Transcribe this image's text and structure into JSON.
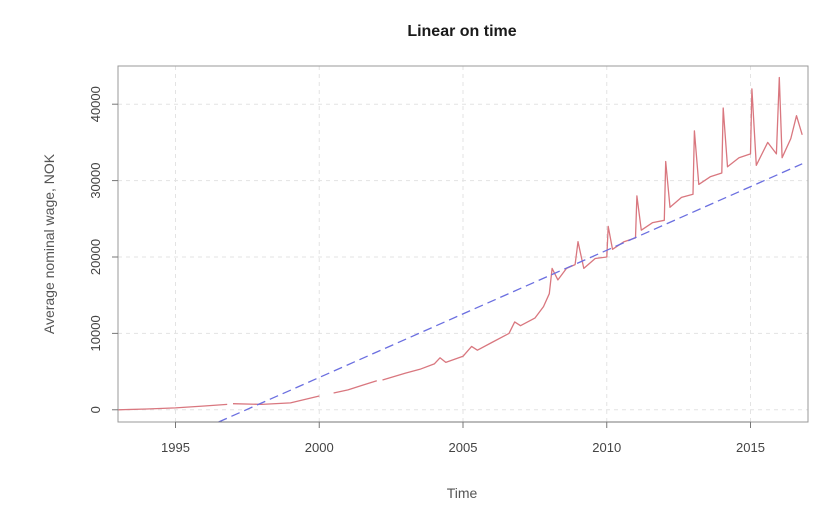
{
  "chart_data": {
    "type": "line",
    "title": "Linear on time",
    "xlabel": "Time",
    "ylabel": "Average nominal wage, NOK",
    "xlim": [
      1993,
      2017
    ],
    "ylim": [
      -1600,
      45000
    ],
    "x_ticks": [
      1995,
      2000,
      2005,
      2010,
      2015
    ],
    "x_tick_labels": [
      "1995",
      "2000",
      "2005",
      "2010",
      "2015"
    ],
    "y_ticks": [
      0,
      10000,
      20000,
      30000,
      40000
    ],
    "y_tick_labels": [
      "0",
      "10000",
      "20000",
      "30000",
      "40000"
    ],
    "grid": true,
    "series": [
      {
        "color": "#d9777f",
        "style": "solid",
        "segments": [
          [
            [
              1993.0,
              0
            ],
            [
              1994.0,
              100
            ],
            [
              1995.0,
              250
            ],
            [
              1996.0,
              500
            ],
            [
              1996.8,
              700
            ]
          ],
          [
            [
              1997.0,
              800
            ],
            [
              1998.0,
              700
            ],
            [
              1999.0,
              900
            ],
            [
              2000.0,
              1800
            ]
          ],
          [
            [
              2000.5,
              2200
            ],
            [
              2001.0,
              2600
            ],
            [
              2001.5,
              3200
            ],
            [
              2002.0,
              3800
            ]
          ],
          [
            [
              2002.2,
              3900
            ],
            [
              2003.0,
              4800
            ],
            [
              2003.5,
              5300
            ],
            [
              2004.0,
              6000
            ],
            [
              2004.2,
              6800
            ],
            [
              2004.4,
              6200
            ],
            [
              2005.0,
              7000
            ],
            [
              2005.3,
              8300
            ],
            [
              2005.5,
              7800
            ],
            [
              2006.0,
              8800
            ],
            [
              2006.6,
              10000
            ],
            [
              2006.8,
              11500
            ],
            [
              2007.0,
              11000
            ],
            [
              2007.5,
              12000
            ],
            [
              2007.8,
              13500
            ],
            [
              2008.0,
              15200
            ],
            [
              2008.1,
              18500
            ],
            [
              2008.3,
              17000
            ],
            [
              2008.6,
              18500
            ],
            [
              2008.9,
              19000
            ],
            [
              2009.0,
              22000
            ],
            [
              2009.2,
              18500
            ],
            [
              2009.6,
              19800
            ],
            [
              2010.0,
              20000
            ],
            [
              2010.05,
              24000
            ],
            [
              2010.2,
              21000
            ],
            [
              2010.6,
              22000
            ],
            [
              2011.0,
              22500
            ],
            [
              2011.05,
              28000
            ],
            [
              2011.2,
              23500
            ],
            [
              2011.6,
              24500
            ],
            [
              2012.0,
              24800
            ],
            [
              2012.05,
              32500
            ],
            [
              2012.2,
              26500
            ],
            [
              2012.6,
              27800
            ],
            [
              2013.0,
              28200
            ],
            [
              2013.05,
              36500
            ],
            [
              2013.2,
              29500
            ],
            [
              2013.6,
              30500
            ],
            [
              2014.0,
              31000
            ],
            [
              2014.05,
              39500
            ],
            [
              2014.2,
              31800
            ],
            [
              2014.6,
              33000
            ],
            [
              2015.0,
              33500
            ],
            [
              2015.05,
              42000
            ],
            [
              2015.2,
              32000
            ],
            [
              2015.6,
              35000
            ],
            [
              2015.9,
              33500
            ],
            [
              2016.0,
              43500
            ],
            [
              2016.1,
              33000
            ],
            [
              2016.4,
              35500
            ],
            [
              2016.6,
              38500
            ],
            [
              2016.8,
              36000
            ]
          ]
        ]
      },
      {
        "color": "#6b6fe0",
        "style": "dashed",
        "segments": [
          [
            [
              1996.5,
              -1600
            ],
            [
              2016.8,
              32200
            ]
          ]
        ]
      }
    ]
  }
}
